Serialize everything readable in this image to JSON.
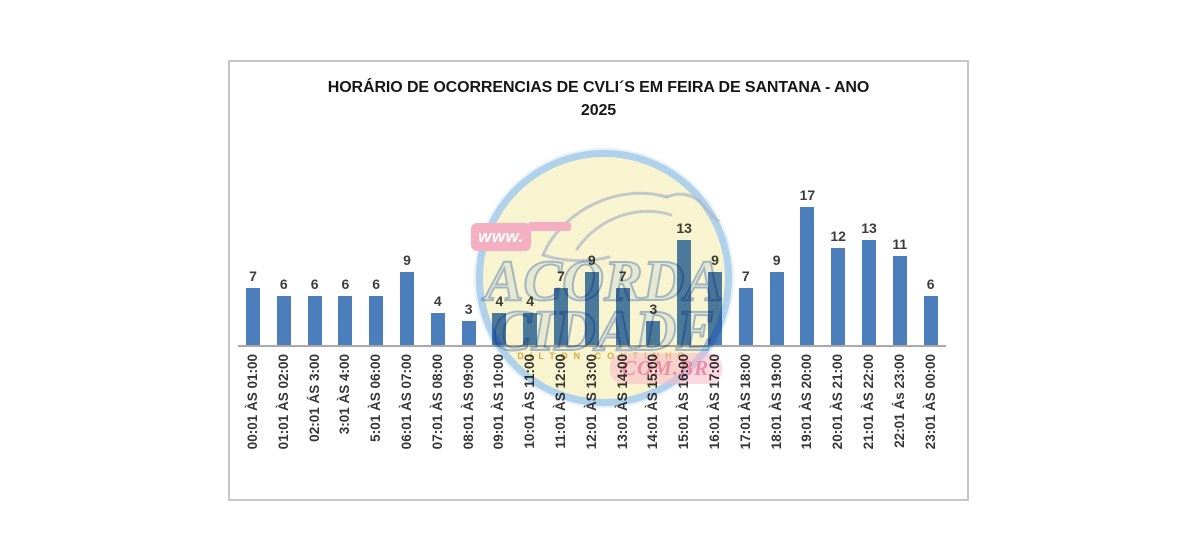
{
  "chart": {
    "bar_color": "#4d7ebc",
    "axis_color": "#aaaaaa",
    "border_color": "#c6c6c6",
    "background": "#ffffff",
    "value_label_color": "#3d3d3d",
    "tick_label_color": "#363636"
  },
  "chart_data": {
    "type": "bar",
    "title": "HORÁRIO DE OCORRENCIAS DE CVLI´S EM FEIRA DE SANTANA - ANO 2025",
    "categories": [
      "00:01 ÀS 01:00",
      "01:01 ÀS 02:00",
      "02:01 ÁS 3:00",
      "3:01 ÀS 4:00",
      "5:01 ÀS 06:00",
      "06:01 ÀS 07:00",
      "07:01 ÀS 08:00",
      "08:01 ÀS 09:00",
      "09:01 ÀS 10:00",
      "10:01 ÀS 11:00",
      "11:01 ÀS 12:00",
      "12:01 ÀS 13:00",
      "13:01 ÀS 14:00",
      "14:01 ÀS 15:00",
      "15:01 ÀS 16:00",
      "16:01 ÀS 17:00",
      "17:01 ÀS 18:00",
      "18:01 ÀS 19:00",
      "19:01 ÀS 20:00",
      "20:01 ÀS 21:00",
      "21:01 ÀS 22:00",
      "22:01 Ás 23:00",
      "23:01 ÀS 00:00"
    ],
    "values": [
      7,
      6,
      6,
      6,
      6,
      9,
      4,
      3,
      4,
      4,
      7,
      9,
      7,
      3,
      13,
      9,
      7,
      9,
      17,
      12,
      13,
      11,
      6
    ],
    "xlabel": "",
    "ylabel": "",
    "ylim": [
      0,
      18
    ],
    "grid": false,
    "legend": false,
    "data_labels": true
  },
  "watermark": {
    "www": "www.",
    "brand_line1": "ACORDA",
    "brand_line2": "CIDADE",
    "subtitle": "DILTON COUTINHO",
    "domain_suffix": "COM.BR",
    "circle_fill": "#f9f3cc",
    "ring_color": "#a9cde9",
    "pink": "#f3a8bd"
  }
}
